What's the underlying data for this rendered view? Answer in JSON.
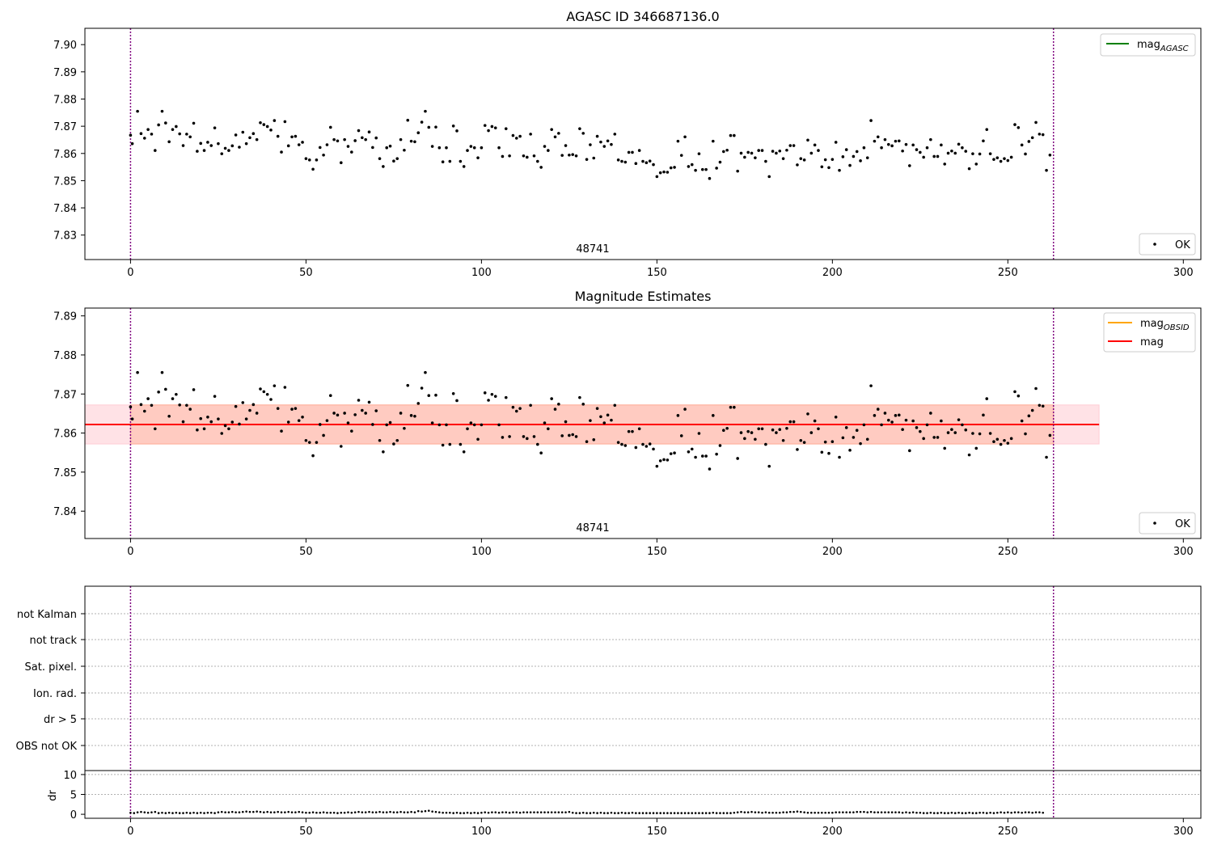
{
  "chart_data": [
    {
      "type": "scatter",
      "title": "AGASC ID 346687136.0",
      "xlim": [
        -13,
        305
      ],
      "ylim": [
        7.821,
        7.906
      ],
      "xticks": [
        0,
        50,
        100,
        150,
        200,
        250,
        300
      ],
      "yticks": [
        7.83,
        7.84,
        7.85,
        7.86,
        7.87,
        7.88,
        7.89,
        7.9
      ],
      "ytick_labels": [
        "7.83",
        "7.84",
        "7.85",
        "7.86",
        "7.87",
        "7.88",
        "7.89",
        "7.90"
      ],
      "vlines": [
        0,
        263
      ],
      "vline_color": "#800080",
      "annotation": "48741",
      "legend_lines": [
        {
          "label": "mag",
          "sub": "AGASC",
          "color": "#008000"
        }
      ],
      "legend_points": [
        {
          "label": "OK",
          "color": "#000000"
        }
      ],
      "legend_lines_position": "upper-right",
      "legend_points_position": "lower-right",
      "series_ref": "mag_points"
    },
    {
      "type": "scatter",
      "title": "Magnitude Estimates",
      "xlim": [
        -13,
        305
      ],
      "ylim": [
        7.833,
        7.892
      ],
      "xticks": [
        0,
        50,
        100,
        150,
        200,
        250,
        300
      ],
      "yticks": [
        7.84,
        7.85,
        7.86,
        7.87,
        7.88,
        7.89
      ],
      "ytick_labels": [
        "7.84",
        "7.85",
        "7.86",
        "7.87",
        "7.88",
        "7.89"
      ],
      "vlines": [
        0,
        263
      ],
      "vline_color": "#800080",
      "annotation": "48741",
      "mean_line": {
        "value": 7.8622,
        "x_range": [
          -13,
          276
        ],
        "color": "#ff0000"
      },
      "bands": [
        {
          "range": [
            7.8572,
            7.8672
          ],
          "x_range": [
            -13,
            276
          ],
          "color": "#ffb6c1",
          "opacity": 0.4
        },
        {
          "range": [
            7.8572,
            7.8672
          ],
          "x_range": [
            0,
            263
          ],
          "color": "#ffa07a",
          "opacity": 0.35
        }
      ],
      "legend_lines": [
        {
          "label": "mag",
          "sub": "OBSID",
          "color": "#ffa500"
        },
        {
          "label": "mag",
          "sub": "",
          "color": "#ff0000"
        }
      ],
      "legend_points": [
        {
          "label": "OK",
          "color": "#000000"
        }
      ],
      "legend_lines_position": "upper-right",
      "legend_points_position": "lower-right",
      "series_ref": "mag_points"
    },
    {
      "type": "scatter",
      "title": "",
      "xlim": [
        -13,
        305
      ],
      "categories": [
        "not Kalman",
        "not track",
        "Sat. pixel.",
        "Ion. rad.",
        "dr > 5",
        "OBS not OK"
      ],
      "vlines": [
        0,
        263
      ],
      "vline_color": "#800080",
      "grid": true
    },
    {
      "type": "scatter",
      "title": "",
      "xlim": [
        -13,
        305
      ],
      "ylim": [
        -1,
        11
      ],
      "ylabel": "dr",
      "xticks": [
        0,
        50,
        100,
        150,
        200,
        250,
        300
      ],
      "yticks": [
        0,
        5,
        10
      ],
      "ytick_labels": [
        "0",
        "5",
        "10"
      ],
      "vlines": [
        0,
        263
      ],
      "vline_color": "#800080",
      "grid": true,
      "dr_values": [
        0.4,
        0.3,
        0.5,
        0.6,
        0.5,
        0.4,
        0.5,
        0.6,
        0.3,
        0.4,
        0.3,
        0.4,
        0.3,
        0.4,
        0.3,
        0.3,
        0.4,
        0.3,
        0.4,
        0.3,
        0.4,
        0.3,
        0.4,
        0.4,
        0.3,
        0.5,
        0.6,
        0.5,
        0.5,
        0.6,
        0.5,
        0.5,
        0.6,
        0.7,
        0.6,
        0.6,
        0.7,
        0.6,
        0.5,
        0.6,
        0.5,
        0.5,
        0.6,
        0.5,
        0.5,
        0.6,
        0.5,
        0.5,
        0.6,
        0.5,
        0.4,
        0.4,
        0.5,
        0.4,
        0.4,
        0.5,
        0.4,
        0.4,
        0.4,
        0.3,
        0.4,
        0.4,
        0.5,
        0.4,
        0.5,
        0.6,
        0.5,
        0.5,
        0.6,
        0.5,
        0.5,
        0.6,
        0.5,
        0.5,
        0.6,
        0.5,
        0.5,
        0.6,
        0.5,
        0.5,
        0.6,
        0.5,
        0.8,
        0.7,
        0.8,
        0.9,
        0.7,
        0.6,
        0.5,
        0.4,
        0.4,
        0.4,
        0.3,
        0.4,
        0.3,
        0.3,
        0.4,
        0.3,
        0.4,
        0.3,
        0.4,
        0.5,
        0.4,
        0.5,
        0.5,
        0.4,
        0.5,
        0.5,
        0.4,
        0.5,
        0.5,
        0.4,
        0.5,
        0.5,
        0.5,
        0.5,
        0.5,
        0.5,
        0.5,
        0.5,
        0.5,
        0.5,
        0.5,
        0.5,
        0.5,
        0.6,
        0.4,
        0.3,
        0.3,
        0.4,
        0.3,
        0.3,
        0.4,
        0.3,
        0.4,
        0.3,
        0.3,
        0.4,
        0.3,
        0.3,
        0.4,
        0.3,
        0.3,
        0.4,
        0.3,
        0.3,
        0.3,
        0.3,
        0.3,
        0.3,
        0.3,
        0.3,
        0.3,
        0.3,
        0.3,
        0.3,
        0.3,
        0.3,
        0.3,
        0.3,
        0.3,
        0.3,
        0.3,
        0.3,
        0.3,
        0.3,
        0.4,
        0.3,
        0.3,
        0.3,
        0.3,
        0.3,
        0.4,
        0.5,
        0.6,
        0.5,
        0.5,
        0.6,
        0.5,
        0.5,
        0.4,
        0.5,
        0.4,
        0.4,
        0.4,
        0.4,
        0.5,
        0.5,
        0.6,
        0.6,
        0.7,
        0.6,
        0.5,
        0.4,
        0.4,
        0.4,
        0.4,
        0.4,
        0.4,
        0.4,
        0.4,
        0.5,
        0.5,
        0.5,
        0.5,
        0.5,
        0.5,
        0.6,
        0.6,
        0.6,
        0.5,
        0.6,
        0.5,
        0.5,
        0.5,
        0.5,
        0.5,
        0.5,
        0.5,
        0.5,
        0.4,
        0.5,
        0.4,
        0.5,
        0.4,
        0.4,
        0.3,
        0.3,
        0.4,
        0.3,
        0.3,
        0.4,
        0.3,
        0.3,
        0.4,
        0.3,
        0.4,
        0.3,
        0.3,
        0.4,
        0.3,
        0.3,
        0.4,
        0.4,
        0.3,
        0.4,
        0.3,
        0.4,
        0.5,
        0.4,
        0.5,
        0.4,
        0.5,
        0.5,
        0.4,
        0.5,
        0.5,
        0.4,
        0.5,
        0.5,
        0.4
      ]
    }
  ],
  "mag_points": [
    [
      0,
      7.8667
    ],
    [
      0.5,
      7.8636
    ],
    [
      2,
      7.8755
    ],
    [
      3,
      7.8673
    ],
    [
      4,
      7.8656
    ],
    [
      5,
      7.8688
    ],
    [
      6,
      7.8671
    ],
    [
      7,
      7.8611
    ],
    [
      8,
      7.8705
    ],
    [
      9,
      7.8755
    ],
    [
      10,
      7.8712
    ],
    [
      11,
      7.8643
    ],
    [
      12,
      7.8688
    ],
    [
      13,
      7.8699
    ],
    [
      14,
      7.8672
    ],
    [
      15,
      7.8629
    ],
    [
      16,
      7.8671
    ],
    [
      17,
      7.8661
    ],
    [
      18,
      7.8711
    ],
    [
      19,
      7.8608
    ],
    [
      20,
      7.8637
    ],
    [
      21,
      7.8611
    ],
    [
      22,
      7.8641
    ],
    [
      23,
      7.8629
    ],
    [
      24,
      7.8694
    ],
    [
      25,
      7.8636
    ],
    [
      26,
      7.8599
    ],
    [
      27,
      7.8619
    ],
    [
      28,
      7.8611
    ],
    [
      29,
      7.8628
    ],
    [
      30,
      7.8668
    ],
    [
      31,
      7.8623
    ],
    [
      32,
      7.8678
    ],
    [
      33,
      7.8636
    ],
    [
      34,
      7.8658
    ],
    [
      35,
      7.8673
    ],
    [
      36,
      7.8651
    ],
    [
      37,
      7.8713
    ],
    [
      38,
      7.8706
    ],
    [
      39,
      7.8699
    ],
    [
      40,
      7.8686
    ],
    [
      41,
      7.8721
    ],
    [
      42,
      7.8663
    ],
    [
      43,
      7.8605
    ],
    [
      44,
      7.8717
    ],
    [
      45,
      7.8628
    ],
    [
      46,
      7.8661
    ],
    [
      47,
      7.8663
    ],
    [
      48,
      7.8632
    ],
    [
      49,
      7.8641
    ],
    [
      50,
      7.8581
    ],
    [
      51,
      7.8576
    ],
    [
      52,
      7.8542
    ],
    [
      53,
      7.8576
    ],
    [
      54,
      7.8622
    ],
    [
      55,
      7.8594
    ],
    [
      56,
      7.8632
    ],
    [
      57,
      7.8696
    ],
    [
      58,
      7.8651
    ],
    [
      59,
      7.8646
    ],
    [
      60,
      7.8566
    ],
    [
      61,
      7.8651
    ],
    [
      62,
      7.8626
    ],
    [
      63,
      7.8605
    ],
    [
      64,
      7.8647
    ],
    [
      65,
      7.8684
    ],
    [
      66,
      7.8658
    ],
    [
      67,
      7.8651
    ],
    [
      68,
      7.8679
    ],
    [
      69,
      7.8622
    ],
    [
      70,
      7.8657
    ],
    [
      71,
      7.8581
    ],
    [
      72,
      7.8552
    ],
    [
      73,
      7.8621
    ],
    [
      74,
      7.8627
    ],
    [
      75,
      7.8572
    ],
    [
      76,
      7.8581
    ],
    [
      77,
      7.8651
    ],
    [
      78,
      7.8612
    ],
    [
      79,
      7.8722
    ],
    [
      80,
      7.8645
    ],
    [
      81,
      7.8643
    ],
    [
      82,
      7.8676
    ],
    [
      83,
      7.8715
    ],
    [
      84,
      7.8755
    ],
    [
      85,
      7.8696
    ],
    [
      86,
      7.8626
    ],
    [
      87,
      7.8697
    ],
    [
      88,
      7.8621
    ],
    [
      89,
      7.8569
    ],
    [
      90,
      7.8621
    ],
    [
      91,
      7.8571
    ],
    [
      92,
      7.8701
    ],
    [
      93,
      7.8683
    ],
    [
      94,
      7.8571
    ],
    [
      95,
      7.8552
    ],
    [
      96,
      7.8611
    ],
    [
      97,
      7.8626
    ],
    [
      98,
      7.8621
    ],
    [
      99,
      7.8584
    ],
    [
      100,
      7.8621
    ],
    [
      101,
      7.8703
    ],
    [
      102,
      7.8684
    ],
    [
      103,
      7.8699
    ],
    [
      104,
      7.8694
    ],
    [
      105,
      7.8621
    ],
    [
      106,
      7.8589
    ],
    [
      107,
      7.8691
    ],
    [
      108,
      7.8591
    ],
    [
      109,
      7.8666
    ],
    [
      110,
      7.8656
    ],
    [
      111,
      7.8663
    ],
    [
      112,
      7.8591
    ],
    [
      113,
      7.8586
    ],
    [
      114,
      7.8671
    ],
    [
      115,
      7.8591
    ],
    [
      116,
      7.8571
    ],
    [
      117,
      7.8549
    ],
    [
      118,
      7.8626
    ],
    [
      119,
      7.8611
    ],
    [
      120,
      7.8688
    ],
    [
      121,
      7.8661
    ],
    [
      122,
      7.8674
    ],
    [
      123,
      7.8593
    ],
    [
      124,
      7.8629
    ],
    [
      125,
      7.8594
    ],
    [
      126,
      7.8596
    ],
    [
      127,
      7.8591
    ],
    [
      128,
      7.8691
    ],
    [
      129,
      7.8674
    ],
    [
      130,
      7.8578
    ],
    [
      131,
      7.8632
    ],
    [
      132,
      7.8583
    ],
    [
      133,
      7.8663
    ],
    [
      134,
      7.8642
    ],
    [
      135,
      7.8626
    ],
    [
      136,
      7.8646
    ],
    [
      137,
      7.8633
    ],
    [
      138,
      7.8671
    ],
    [
      139,
      7.8576
    ],
    [
      140,
      7.8571
    ],
    [
      141,
      7.8568
    ],
    [
      142,
      7.8604
    ],
    [
      143,
      7.8604
    ],
    [
      144,
      7.8563
    ],
    [
      145,
      7.8611
    ],
    [
      146,
      7.8571
    ],
    [
      147,
      7.8566
    ],
    [
      148,
      7.8572
    ],
    [
      149,
      7.8559
    ],
    [
      150,
      7.8515
    ],
    [
      151,
      7.8529
    ],
    [
      152,
      7.8532
    ],
    [
      153,
      7.8531
    ],
    [
      154,
      7.8547
    ],
    [
      155,
      7.8549
    ],
    [
      156,
      7.8645
    ],
    [
      157,
      7.8593
    ],
    [
      158,
      7.8661
    ],
    [
      159,
      7.8552
    ],
    [
      160,
      7.8559
    ],
    [
      161,
      7.8538
    ],
    [
      162,
      7.8599
    ],
    [
      163,
      7.8541
    ],
    [
      164,
      7.8541
    ],
    [
      165,
      7.8508
    ],
    [
      166,
      7.8645
    ],
    [
      167,
      7.8546
    ],
    [
      168,
      7.8568
    ],
    [
      169,
      7.8607
    ],
    [
      170,
      7.8612
    ],
    [
      171,
      7.8666
    ],
    [
      172,
      7.8666
    ],
    [
      173,
      7.8535
    ],
    [
      174,
      7.8601
    ],
    [
      175,
      7.8586
    ],
    [
      176,
      7.8604
    ],
    [
      177,
      7.8601
    ],
    [
      178,
      7.8584
    ],
    [
      179,
      7.8611
    ],
    [
      180,
      7.8611
    ],
    [
      181,
      7.8571
    ],
    [
      182,
      7.8515
    ],
    [
      183,
      7.8608
    ],
    [
      184,
      7.8601
    ],
    [
      185,
      7.8609
    ],
    [
      186,
      7.8581
    ],
    [
      187,
      7.8612
    ],
    [
      188,
      7.8629
    ],
    [
      189,
      7.8629
    ],
    [
      190,
      7.8558
    ],
    [
      191,
      7.8581
    ],
    [
      192,
      7.8576
    ],
    [
      193,
      7.8649
    ],
    [
      194,
      7.8601
    ],
    [
      195,
      7.8631
    ],
    [
      196,
      7.8611
    ],
    [
      197,
      7.8551
    ],
    [
      198,
      7.8577
    ],
    [
      199,
      7.8548
    ],
    [
      200,
      7.8578
    ],
    [
      201,
      7.8641
    ],
    [
      202,
      7.8538
    ],
    [
      203,
      7.8588
    ],
    [
      204,
      7.8614
    ],
    [
      205,
      7.8556
    ],
    [
      206,
      7.8589
    ],
    [
      207,
      7.8607
    ],
    [
      208,
      7.8573
    ],
    [
      209,
      7.8621
    ],
    [
      210,
      7.8584
    ],
    [
      211,
      7.8721
    ],
    [
      212,
      7.8645
    ],
    [
      213,
      7.8661
    ],
    [
      214,
      7.8621
    ],
    [
      215,
      7.8651
    ],
    [
      216,
      7.8633
    ],
    [
      217,
      7.8628
    ],
    [
      218,
      7.8645
    ],
    [
      219,
      7.8646
    ],
    [
      220,
      7.8609
    ],
    [
      221,
      7.8633
    ],
    [
      222,
      7.8555
    ],
    [
      223,
      7.8631
    ],
    [
      224,
      7.8614
    ],
    [
      225,
      7.8604
    ],
    [
      226,
      7.8586
    ],
    [
      227,
      7.8621
    ],
    [
      228,
      7.8651
    ],
    [
      229,
      7.8589
    ],
    [
      230,
      7.8589
    ],
    [
      231,
      7.8631
    ],
    [
      232,
      7.8561
    ],
    [
      233,
      7.8601
    ],
    [
      234,
      7.8609
    ],
    [
      235,
      7.8601
    ],
    [
      236,
      7.8634
    ],
    [
      237,
      7.8621
    ],
    [
      238,
      7.8608
    ],
    [
      239,
      7.8544
    ],
    [
      240,
      7.8599
    ],
    [
      241,
      7.8561
    ],
    [
      242,
      7.8598
    ],
    [
      243,
      7.8646
    ],
    [
      244,
      7.8688
    ],
    [
      245,
      7.8599
    ],
    [
      246,
      7.8578
    ],
    [
      247,
      7.8584
    ],
    [
      248,
      7.8571
    ],
    [
      249,
      7.8581
    ],
    [
      250,
      7.8574
    ],
    [
      251,
      7.8586
    ],
    [
      252,
      7.8706
    ],
    [
      253,
      7.8695
    ],
    [
      254,
      7.8631
    ],
    [
      255,
      7.8598
    ],
    [
      256,
      7.8644
    ],
    [
      257,
      7.8658
    ],
    [
      258,
      7.8714
    ],
    [
      259,
      7.8671
    ],
    [
      260,
      7.8669
    ],
    [
      261,
      7.8538
    ],
    [
      262,
      7.8594
    ]
  ]
}
